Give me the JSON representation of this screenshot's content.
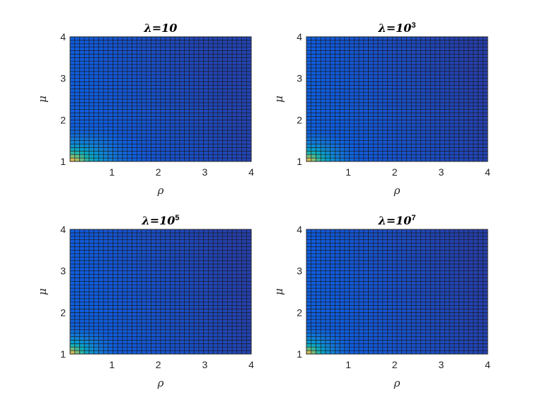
{
  "chart_data": [
    {
      "type": "heatmap",
      "title": "λ=10",
      "title_prefix": "λ=10",
      "title_sup": "",
      "xlabel": "ρ",
      "ylabel": "μ",
      "xlim": [
        0.1,
        4
      ],
      "ylim": [
        1,
        4
      ],
      "xticks": [
        "1",
        "2",
        "3",
        "4"
      ],
      "yticks": [
        "1",
        "2",
        "3",
        "4"
      ],
      "grid_cols": 38,
      "grid_rows": 36,
      "colormap": "parula",
      "color_range": [
        0,
        1
      ],
      "max_value_at": [
        0.1,
        1
      ],
      "decay_x": 0.55,
      "decay_y": 0.32,
      "floor": 0.06
    },
    {
      "type": "heatmap",
      "title": "λ=10^3",
      "title_prefix": "λ=10",
      "title_sup": "3",
      "xlabel": "ρ",
      "ylabel": "μ",
      "xlim": [
        0.1,
        4
      ],
      "ylim": [
        1,
        4
      ],
      "xticks": [
        "1",
        "2",
        "3",
        "4"
      ],
      "yticks": [
        "1",
        "2",
        "3",
        "4"
      ],
      "grid_cols": 38,
      "grid_rows": 36,
      "colormap": "parula",
      "color_range": [
        0,
        1
      ],
      "max_value_at": [
        0.1,
        1
      ],
      "decay_x": 0.45,
      "decay_y": 0.3,
      "floor": 0.05
    },
    {
      "type": "heatmap",
      "title": "λ=10^5",
      "title_prefix": "λ=10",
      "title_sup": "5",
      "xlabel": "ρ",
      "ylabel": "μ",
      "xlim": [
        0.1,
        4
      ],
      "ylim": [
        1,
        4
      ],
      "xticks": [
        "1",
        "2",
        "3",
        "4"
      ],
      "yticks": [
        "1",
        "2",
        "3",
        "4"
      ],
      "grid_cols": 38,
      "grid_rows": 36,
      "colormap": "parula",
      "color_range": [
        0,
        1
      ],
      "max_value_at": [
        0.1,
        1
      ],
      "decay_x": 0.4,
      "decay_y": 0.28,
      "floor": 0.05
    },
    {
      "type": "heatmap",
      "title": "λ=10^7",
      "title_prefix": "λ=10",
      "title_sup": "7",
      "xlabel": "ρ",
      "ylabel": "μ",
      "xlim": [
        0.1,
        4
      ],
      "ylim": [
        1,
        4
      ],
      "xticks": [
        "1",
        "2",
        "3",
        "4"
      ],
      "yticks": [
        "1",
        "2",
        "3",
        "4"
      ],
      "grid_cols": 38,
      "grid_rows": 36,
      "colormap": "parula",
      "color_range": [
        0,
        1
      ],
      "max_value_at": [
        0.1,
        1
      ],
      "decay_x": 0.38,
      "decay_y": 0.27,
      "floor": 0.05
    }
  ]
}
